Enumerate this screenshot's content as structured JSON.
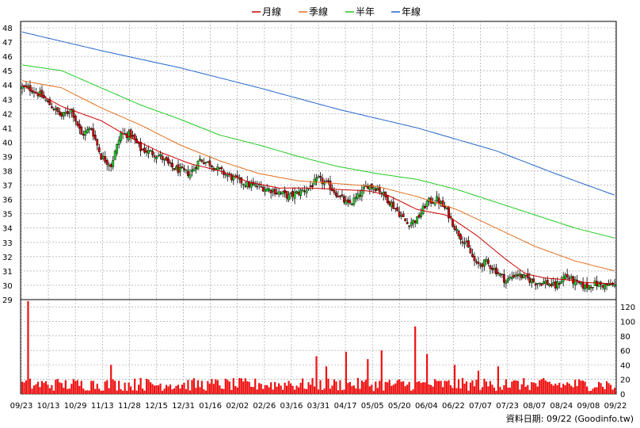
{
  "chart_data": {
    "type": "candlestick",
    "legend": [
      {
        "name": "月線",
        "color": "#cc0000"
      },
      {
        "name": "季線",
        "color": "#e07020"
      },
      {
        "name": "半年",
        "color": "#22cc22"
      },
      {
        "name": "年線",
        "color": "#2266cc"
      }
    ],
    "price_axis": {
      "min": 29,
      "max": 48,
      "ticks": [
        29,
        30,
        31,
        32,
        33,
        34,
        35,
        36,
        37,
        38,
        39,
        40,
        41,
        42,
        43,
        44,
        45,
        46,
        47,
        48
      ]
    },
    "volume_axis": {
      "min": 0,
      "max": 130,
      "ticks": [
        0,
        20,
        40,
        60,
        80,
        100,
        120
      ]
    },
    "x_labels": [
      "09/23",
      "10/13",
      "10/29",
      "11/13",
      "11/28",
      "12/15",
      "12/31",
      "01/16",
      "02/02",
      "02/26",
      "03/16",
      "03/31",
      "04/17",
      "05/05",
      "05/20",
      "06/04",
      "06/22",
      "07/07",
      "07/23",
      "08/07",
      "08/24",
      "09/08",
      "09/22"
    ],
    "grid": true,
    "up_color": "#22cc22",
    "down_color": "#cc0000",
    "volume_color": "#ee1111",
    "close_series": [
      [
        0,
        43.8
      ],
      [
        5,
        43.7
      ],
      [
        10,
        43.2
      ],
      [
        15,
        42.5
      ],
      [
        20,
        41.8
      ],
      [
        25,
        42.3
      ],
      [
        30,
        40.5
      ],
      [
        35,
        41.0
      ],
      [
        40,
        39.0
      ],
      [
        45,
        38.4
      ],
      [
        50,
        40.6
      ],
      [
        55,
        40.5
      ],
      [
        60,
        39.5
      ],
      [
        65,
        39.3
      ],
      [
        70,
        39.0
      ],
      [
        75,
        38.3
      ],
      [
        80,
        38.0
      ],
      [
        85,
        37.8
      ],
      [
        90,
        38.8
      ],
      [
        95,
        38.5
      ],
      [
        100,
        38.0
      ],
      [
        105,
        37.6
      ],
      [
        110,
        37.3
      ],
      [
        115,
        37.0
      ],
      [
        120,
        36.9
      ],
      [
        125,
        36.7
      ],
      [
        130,
        36.5
      ],
      [
        135,
        36.2
      ],
      [
        140,
        36.5
      ],
      [
        145,
        36.8
      ],
      [
        150,
        37.4
      ],
      [
        155,
        37.0
      ],
      [
        160,
        36.3
      ],
      [
        165,
        35.6
      ],
      [
        170,
        36.2
      ],
      [
        175,
        37.0
      ],
      [
        180,
        36.8
      ],
      [
        185,
        36.0
      ],
      [
        190,
        35.2
      ],
      [
        195,
        34.3
      ],
      [
        200,
        34.6
      ],
      [
        205,
        35.8
      ],
      [
        210,
        36.0
      ],
      [
        215,
        35.2
      ],
      [
        220,
        33.8
      ],
      [
        225,
        32.8
      ],
      [
        230,
        31.4
      ],
      [
        235,
        31.6
      ],
      [
        240,
        31.0
      ],
      [
        245,
        30.3
      ],
      [
        250,
        30.8
      ],
      [
        255,
        30.5
      ],
      [
        260,
        30.2
      ],
      [
        265,
        30.2
      ],
      [
        270,
        29.9
      ],
      [
        275,
        30.7
      ],
      [
        280,
        30.2
      ],
      [
        285,
        29.9
      ],
      [
        290,
        30.1
      ],
      [
        295,
        30.0
      ],
      [
        300,
        30.0
      ]
    ],
    "moving_averages": {
      "月線": [
        [
          0,
          44.0
        ],
        [
          20,
          42.5
        ],
        [
          40,
          41.5
        ],
        [
          55,
          40.3
        ],
        [
          70,
          39.3
        ],
        [
          85,
          38.5
        ],
        [
          100,
          38.0
        ],
        [
          115,
          37.2
        ],
        [
          130,
          36.8
        ],
        [
          145,
          36.8
        ],
        [
          160,
          36.7
        ],
        [
          175,
          36.6
        ],
        [
          185,
          36.3
        ],
        [
          200,
          35.3
        ],
        [
          215,
          34.9
        ],
        [
          230,
          33.5
        ],
        [
          245,
          31.8
        ],
        [
          255,
          30.8
        ],
        [
          265,
          30.5
        ],
        [
          275,
          30.4
        ],
        [
          285,
          30.2
        ],
        [
          300,
          30.1
        ]
      ],
      "季線": [
        [
          0,
          44.3
        ],
        [
          20,
          43.8
        ],
        [
          40,
          42.4
        ],
        [
          60,
          41.2
        ],
        [
          80,
          39.8
        ],
        [
          100,
          38.7
        ],
        [
          120,
          37.8
        ],
        [
          140,
          37.3
        ],
        [
          160,
          37.1
        ],
        [
          180,
          36.9
        ],
        [
          200,
          36.2
        ],
        [
          220,
          35.3
        ],
        [
          240,
          34.0
        ],
        [
          260,
          32.7
        ],
        [
          280,
          31.7
        ],
        [
          300,
          31.0
        ]
      ],
      "半年": [
        [
          0,
          45.4
        ],
        [
          20,
          45.0
        ],
        [
          40,
          43.8
        ],
        [
          60,
          42.6
        ],
        [
          80,
          41.6
        ],
        [
          100,
          40.5
        ],
        [
          120,
          39.8
        ],
        [
          140,
          39.0
        ],
        [
          160,
          38.3
        ],
        [
          180,
          37.8
        ],
        [
          200,
          37.4
        ],
        [
          220,
          36.7
        ],
        [
          240,
          35.8
        ],
        [
          260,
          34.9
        ],
        [
          280,
          34.0
        ],
        [
          300,
          33.3
        ]
      ],
      "年線": [
        [
          0,
          47.7
        ],
        [
          40,
          46.4
        ],
        [
          80,
          45.2
        ],
        [
          120,
          43.8
        ],
        [
          160,
          42.3
        ],
        [
          200,
          41.0
        ],
        [
          240,
          39.4
        ],
        [
          270,
          37.8
        ],
        [
          300,
          36.3
        ]
      ]
    },
    "volume_spikes": [
      [
        3,
        128
      ],
      [
        20,
        15
      ],
      [
        35,
        18
      ],
      [
        45,
        40
      ],
      [
        60,
        22
      ],
      [
        75,
        13
      ],
      [
        95,
        14
      ],
      [
        120,
        15
      ],
      [
        135,
        18
      ],
      [
        149,
        52
      ],
      [
        154,
        38
      ],
      [
        164,
        58
      ],
      [
        175,
        48
      ],
      [
        182,
        60
      ],
      [
        199,
        93
      ],
      [
        205,
        55
      ],
      [
        219,
        40
      ],
      [
        231,
        32
      ],
      [
        241,
        38
      ],
      [
        245,
        20
      ],
      [
        275,
        12
      ],
      [
        293,
        15
      ],
      [
        299,
        6
      ]
    ],
    "source_text": "資料日期: 09/22  (Goodinfo.tw)"
  }
}
